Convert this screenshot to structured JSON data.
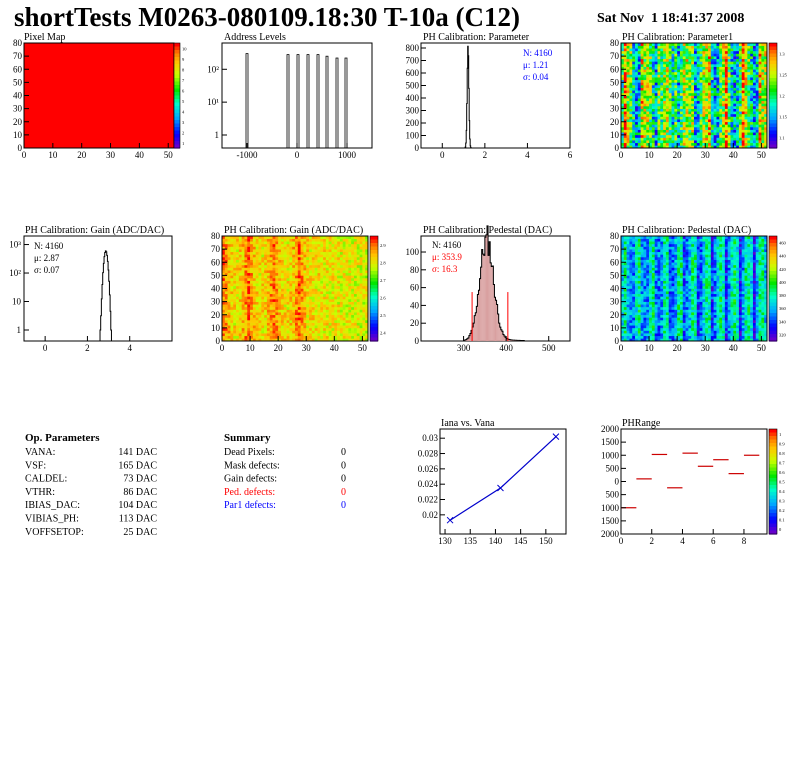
{
  "header": {
    "title": "shortTests M0263-080109.18:30 T-10a (C12)",
    "date": "Sat Nov  1 18:41:37 2008"
  },
  "colors": {
    "histogram_line": "#000000",
    "stats_blue": "#0000ff",
    "stats_red": "#ff0000",
    "pixel_map_fill": "#ff0000",
    "pedestal_fill": "#d9a0a0"
  },
  "chart_data": [
    {
      "type": "heatmap",
      "title": "Pixel Map",
      "xlim": [
        0,
        52
      ],
      "ylim": [
        0,
        80
      ],
      "x_ticks": [
        "0",
        "10",
        "20",
        "30",
        "40",
        "50"
      ],
      "y_ticks": [
        "0",
        "10",
        "20",
        "30",
        "40",
        "50",
        "60",
        "70",
        "80"
      ],
      "uniform_value": 10,
      "zlim": [
        0,
        10
      ],
      "palette_labels": [
        "10",
        "9",
        "8",
        "7",
        "6",
        "5",
        "4",
        "3",
        "2",
        "1"
      ]
    },
    {
      "type": "bar",
      "title": "Address Levels",
      "xlim": [
        -1500,
        1500
      ],
      "x_ticks": [
        "-1000",
        "0",
        "1000"
      ],
      "y_ticks": [
        "1",
        "10¹",
        "10²"
      ],
      "log_y": true,
      "peaks_x": [
        -1000,
        -180,
        20,
        220,
        420,
        600,
        800,
        980
      ],
      "peak_heights": [
        300,
        280,
        280,
        280,
        280,
        250,
        220,
        220
      ]
    },
    {
      "type": "bar",
      "title": "PH Calibration: Parameter",
      "xlim": [
        -1,
        6
      ],
      "x_ticks": [
        "0",
        "2",
        "4",
        "6"
      ],
      "y_ticks": [
        "0",
        "100",
        "200",
        "300",
        "400",
        "500",
        "600",
        "700",
        "800"
      ],
      "stats": {
        "n": "N: 4160",
        "mean": "μ: 1.21",
        "sigma": "σ: 0.04"
      },
      "mean": 1.21,
      "sigma": 0.04,
      "peak": 820
    },
    {
      "type": "heatmap",
      "title": "PH Calibration: Parameter1",
      "xlim": [
        0,
        52
      ],
      "ylim": [
        0,
        80
      ],
      "x_ticks": [
        "0",
        "10",
        "20",
        "30",
        "40",
        "50"
      ],
      "y_ticks": [
        "0",
        "10",
        "20",
        "30",
        "40",
        "50",
        "60",
        "70",
        "80"
      ],
      "palette_labels": [
        "1.3",
        "1.25",
        "1.2",
        "1.15",
        "1.1"
      ]
    },
    {
      "type": "bar",
      "title": "PH Calibration: Gain (ADC/DAC)",
      "xlim": [
        -1,
        6
      ],
      "x_ticks": [
        "0",
        "2",
        "4"
      ],
      "y_ticks": [
        "1",
        "10",
        "10²",
        "10³"
      ],
      "log_y": true,
      "stats": {
        "n": "N: 4160",
        "mean": "μ: 2.87",
        "sigma": "σ: 0.07"
      },
      "mean": 2.87,
      "sigma": 0.07,
      "peak": 600
    },
    {
      "type": "heatmap",
      "title": "PH Calibration: Gain (ADC/DAC)",
      "xlim": [
        0,
        52
      ],
      "ylim": [
        0,
        80
      ],
      "x_ticks": [
        "0",
        "10",
        "20",
        "30",
        "40",
        "50"
      ],
      "y_ticks": [
        "0",
        "10",
        "20",
        "30",
        "40",
        "50",
        "60",
        "70",
        "80"
      ],
      "palette_labels": [
        "2.9",
        "2.8",
        "2.7",
        "2.6",
        "2.5",
        "2.4"
      ]
    },
    {
      "type": "bar",
      "title": "PH Calibration: Pedestal (DAC)",
      "xlim": [
        200,
        550
      ],
      "x_ticks": [
        "300",
        "400",
        "500"
      ],
      "y_ticks": [
        "0",
        "20",
        "40",
        "60",
        "80",
        "100"
      ],
      "stats": {
        "n": "N: 4160",
        "mean": "μ: 353.9",
        "sigma": "σ: 16.3"
      },
      "mean": 353.9,
      "sigma": 16.3,
      "peak": 112,
      "cut_lines": [
        320,
        404
      ]
    },
    {
      "type": "heatmap",
      "title": "PH Calibration: Pedestal (DAC)",
      "xlim": [
        0,
        52
      ],
      "ylim": [
        0,
        80
      ],
      "x_ticks": [
        "0",
        "10",
        "20",
        "30",
        "40",
        "50"
      ],
      "y_ticks": [
        "0",
        "10",
        "20",
        "30",
        "40",
        "50",
        "60",
        "70",
        "80"
      ],
      "palette_labels": [
        "460",
        "440",
        "420",
        "400",
        "380",
        "360",
        "340",
        "320"
      ]
    },
    {
      "type": "line",
      "title": "Iana vs. Vana",
      "x": [
        131,
        141,
        152
      ],
      "y": [
        0.0193,
        0.0235,
        0.0302
      ],
      "xlim": [
        129,
        154
      ],
      "ylim": [
        0.0175,
        0.0312
      ],
      "x_ticks": [
        "130",
        "135",
        "140",
        "145",
        "150"
      ],
      "y_ticks": [
        "0.02",
        "0.022",
        "0.024",
        "0.026",
        "0.028",
        "0.03"
      ]
    },
    {
      "type": "scatter",
      "title": "PHRange",
      "x": [
        0.5,
        1.5,
        2.5,
        3.5,
        4.5,
        5.5,
        6.5,
        7.5,
        8.5
      ],
      "y": [
        -1000,
        100,
        1030,
        -240,
        1080,
        580,
        830,
        300,
        1000
      ],
      "xlim": [
        0,
        9.5
      ],
      "ylim": [
        -2000,
        2000
      ],
      "x_ticks": [
        "0",
        "2",
        "4",
        "6",
        "8"
      ],
      "y_ticks": [
        "2000",
        "1500",
        "1000",
        "500",
        "0",
        "-500",
        "-1000",
        "-1500",
        "-2000"
      ],
      "y_tick_labels": [
        "2000",
        "1500",
        "1000",
        "500",
        "0",
        "500",
        "1000",
        "1500",
        "2000"
      ],
      "palette_labels": [
        "1",
        "0.9",
        "0.8",
        "0.7",
        "0.6",
        "0.5",
        "0.4",
        "0.3",
        "0.2",
        "0.1",
        "0"
      ]
    }
  ],
  "op_parameters": {
    "heading": "Op. Parameters",
    "rows": [
      {
        "name": "VANA:",
        "value": "141 DAC"
      },
      {
        "name": "VSF:",
        "value": "165 DAC"
      },
      {
        "name": "CALDEL:",
        "value": "73 DAC"
      },
      {
        "name": "VTHR:",
        "value": "86 DAC"
      },
      {
        "name": "IBIAS_DAC:",
        "value": "104 DAC"
      },
      {
        "name": "VIBIAS_PH:",
        "value": "113 DAC"
      },
      {
        "name": "VOFFSETOP:",
        "value": "25 DAC"
      }
    ]
  },
  "summary": {
    "heading": "Summary",
    "rows": [
      {
        "name": "Dead Pixels:",
        "value": "0",
        "color": "#000000"
      },
      {
        "name": "Mask defects:",
        "value": "0",
        "color": "#000000"
      },
      {
        "name": "Gain defects:",
        "value": "0",
        "color": "#000000"
      },
      {
        "name": "Ped. defects:",
        "value": "0",
        "color": "#ff0000"
      },
      {
        "name": "Par1 defects:",
        "value": "0",
        "color": "#0000ff"
      }
    ]
  }
}
